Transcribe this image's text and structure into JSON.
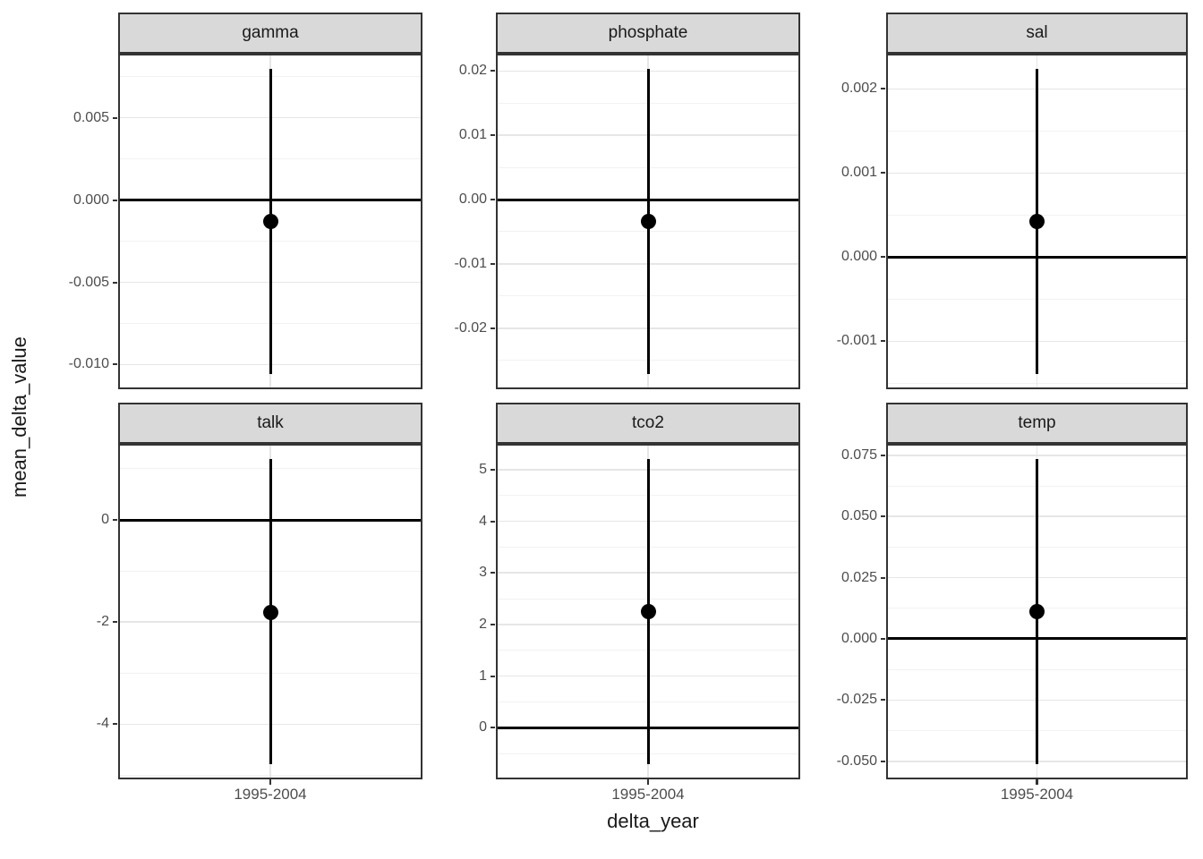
{
  "chart_data": {
    "type": "pointrange",
    "title": "",
    "xlabel": "delta_year",
    "ylabel": "mean_delta_value",
    "x_category": "1995-2004",
    "grid": true,
    "legend": "none",
    "facet_layout": "2 rows x 3 cols",
    "facets": [
      {
        "label": "gamma",
        "y": -0.0013,
        "ymin": -0.0106,
        "ymax": 0.008,
        "hline": 0,
        "tick_values": [
          0.005,
          0,
          -0.005,
          -0.01
        ],
        "tick_labels": [
          "0.005",
          "0.000",
          "-0.005",
          "-0.010"
        ],
        "ylim": [
          -0.0115,
          0.0089
        ]
      },
      {
        "label": "phosphate",
        "y": -0.0034,
        "ymin": -0.0271,
        "ymax": 0.0203,
        "hline": 0,
        "tick_values": [
          0.02,
          0.01,
          0,
          -0.01,
          -0.02
        ],
        "tick_labels": [
          "0.02",
          "0.01",
          "0.00",
          "-0.01",
          "-0.02"
        ],
        "ylim": [
          -0.0295,
          0.0227
        ]
      },
      {
        "label": "sal",
        "y": 0.00042,
        "ymin": -0.00139,
        "ymax": 0.00224,
        "hline": 0,
        "tick_values": [
          0.002,
          0.001,
          0,
          -0.001
        ],
        "tick_labels": [
          "0.002",
          "0.001",
          "0.000",
          "-0.001"
        ],
        "ylim": [
          -0.00157,
          0.00242
        ]
      },
      {
        "label": "talk",
        "y": -1.81,
        "ymin": -4.78,
        "ymax": 1.19,
        "hline": 0,
        "tick_values": [
          0,
          -2,
          -4
        ],
        "tick_labels": [
          "0",
          "-2",
          "-4"
        ],
        "ylim": [
          -5.08,
          1.49
        ]
      },
      {
        "label": "tco2",
        "y": 2.25,
        "ymin": -0.7,
        "ymax": 5.2,
        "hline": 0,
        "tick_values": [
          5,
          4,
          3,
          2,
          1,
          0
        ],
        "tick_labels": [
          "5",
          "4",
          "3",
          "2",
          "1",
          "0"
        ],
        "ylim": [
          -1.0,
          5.5
        ]
      },
      {
        "label": "temp",
        "y": 0.011,
        "ymin": -0.0512,
        "ymax": 0.0735,
        "hline": 0,
        "tick_values": [
          0.075,
          0.05,
          0.025,
          0,
          -0.025,
          -0.05
        ],
        "tick_labels": [
          "0.075",
          "0.050",
          "0.025",
          "0.000",
          "-0.025",
          "-0.050"
        ],
        "ylim": [
          -0.0574,
          0.0797
        ]
      }
    ],
    "colors": {
      "point": "#000000",
      "line": "#000000",
      "strip_bg": "#d9d9d9",
      "panel_border": "#333333",
      "grid_major": "#e6e6e6",
      "grid_minor": "#f2f2f2",
      "axis_text": "#4d4d4d",
      "axis_title": "#1a1a1a",
      "background": "#ffffff"
    }
  }
}
